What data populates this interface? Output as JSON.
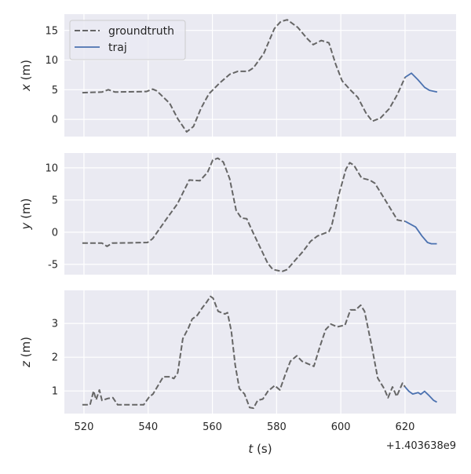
{
  "chart_data": [
    {
      "type": "line",
      "ylabel_var": "x",
      "ylabel_unit": " (m)",
      "xlim": [
        513.9,
        635.9
      ],
      "ylim": [
        -2.9,
        17.75
      ],
      "yticks": [
        0,
        5,
        10,
        15
      ],
      "grid": true,
      "legend": {
        "placement": "top-left",
        "entries": [
          "groundtruth",
          "traj"
        ]
      },
      "series": [
        {
          "name": "groundtruth",
          "style": "dashed",
          "color": "#666666",
          "x": [
            519.5,
            525.6,
            527.6,
            529.7,
            539.5,
            541.4,
            542.7,
            546.7,
            549.2,
            552.0,
            554.1,
            556.5,
            558.9,
            562.2,
            565.4,
            567.9,
            571.1,
            572.8,
            576.0,
            579.3,
            581.3,
            583.3,
            586.6,
            589.4,
            591.4,
            593.9,
            596.3,
            598.4,
            600.4,
            602.9,
            605.3,
            607.8,
            609.8,
            612.3,
            615.1,
            617.6,
            620.0
          ],
          "y": [
            4.5,
            4.6,
            5.0,
            4.6,
            4.7,
            5.1,
            4.8,
            2.7,
            0.1,
            -2.1,
            -1.2,
            1.9,
            4.3,
            6.1,
            7.6,
            8.1,
            8.1,
            8.7,
            11.1,
            15.3,
            16.5,
            16.8,
            15.5,
            13.7,
            12.6,
            13.3,
            12.9,
            9.3,
            6.5,
            5.0,
            3.7,
            1.1,
            -0.3,
            0.2,
            1.8,
            4.2,
            7.1
          ]
        },
        {
          "name": "traj",
          "style": "solid",
          "color": "#4c72b0",
          "x": [
            620.0,
            622.0,
            624.0,
            626.1,
            627.6,
            629.3,
            630.0
          ],
          "y": [
            7.1,
            7.8,
            6.7,
            5.4,
            4.9,
            4.7,
            4.6
          ]
        }
      ]
    },
    {
      "type": "line",
      "ylabel_var": "y",
      "ylabel_unit": " (m)",
      "xlim": [
        513.9,
        635.9
      ],
      "ylim": [
        -6.6,
        12.3
      ],
      "yticks": [
        -5,
        0,
        5,
        10
      ],
      "grid": true,
      "series": [
        {
          "name": "groundtruth",
          "style": "dashed",
          "color": "#666666",
          "x": [
            519.5,
            525.6,
            527.2,
            528.8,
            539.8,
            541.4,
            545.9,
            549.1,
            552.8,
            556.1,
            558.5,
            560.1,
            561.7,
            563.4,
            565.4,
            567.4,
            569.0,
            570.7,
            572.7,
            575.2,
            577.2,
            578.8,
            581.7,
            583.3,
            585.7,
            588.2,
            590.6,
            592.7,
            596.3,
            597.1,
            599.6,
            601.6,
            602.8,
            604.1,
            606.5,
            609.0,
            610.6,
            614.3,
            617.6,
            619.6,
            620.0
          ],
          "y": [
            -1.7,
            -1.7,
            -2.2,
            -1.7,
            -1.6,
            -1.0,
            2.2,
            4.4,
            8.1,
            8.0,
            9.3,
            11.2,
            11.5,
            10.9,
            8.3,
            3.4,
            2.2,
            2.1,
            -0.1,
            -2.7,
            -4.8,
            -5.8,
            -6.1,
            -5.8,
            -4.4,
            -3.0,
            -1.4,
            -0.6,
            0.1,
            0.9,
            6.2,
            9.8,
            10.8,
            10.4,
            8.4,
            8.1,
            7.6,
            4.6,
            1.9,
            1.7,
            1.7
          ]
        },
        {
          "name": "traj",
          "style": "solid",
          "color": "#4c72b0",
          "x": [
            620.0,
            623.3,
            625.3,
            627.0,
            628.2,
            629.9
          ],
          "y": [
            1.7,
            0.8,
            -0.6,
            -1.6,
            -1.8,
            -1.8
          ]
        }
      ]
    },
    {
      "type": "line",
      "ylabel_var": "z",
      "ylabel_unit": " (m)",
      "xlim": [
        513.9,
        635.9
      ],
      "ylim": [
        0.33,
        3.98
      ],
      "yticks": [
        1,
        2,
        3
      ],
      "xticks": [
        520,
        540,
        560,
        580,
        600,
        620
      ],
      "xlabel_var": "t",
      "xlabel_unit": " (s)",
      "offset_text": "+1.403638e9",
      "grid": true,
      "series": [
        {
          "name": "groundtruth",
          "style": "dashed",
          "color": "#666666",
          "x": [
            519.5,
            521.9,
            523.0,
            523.8,
            524.8,
            525.6,
            527.6,
            529.0,
            530.5,
            538.6,
            540.3,
            541.5,
            543.5,
            544.7,
            546.8,
            548.0,
            549.2,
            550.8,
            552.5,
            553.7,
            555.3,
            556.9,
            558.2,
            559.4,
            560.2,
            561.8,
            563.9,
            564.7,
            565.9,
            567.1,
            568.4,
            570.0,
            571.6,
            572.8,
            574.1,
            575.7,
            577.3,
            579.4,
            581.0,
            582.6,
            584.3,
            586.3,
            587.9,
            589.6,
            591.6,
            593.6,
            595.3,
            596.9,
            598.9,
            601.3,
            603.0,
            604.6,
            606.2,
            607.4,
            609.5,
            611.5,
            613.5,
            614.7,
            616.1,
            617.4,
            619.2,
            620.0
          ],
          "y": [
            0.59,
            0.59,
            1.0,
            0.74,
            1.03,
            0.72,
            0.78,
            0.8,
            0.59,
            0.59,
            0.82,
            0.91,
            1.23,
            1.42,
            1.42,
            1.37,
            1.54,
            2.55,
            2.86,
            3.13,
            3.24,
            3.47,
            3.63,
            3.8,
            3.75,
            3.36,
            3.28,
            3.32,
            2.77,
            1.77,
            1.07,
            0.91,
            0.51,
            0.49,
            0.72,
            0.76,
            0.99,
            1.16,
            1.03,
            1.46,
            1.88,
            2.04,
            1.88,
            1.81,
            1.73,
            2.35,
            2.82,
            2.98,
            2.9,
            2.95,
            3.4,
            3.4,
            3.54,
            3.36,
            2.39,
            1.38,
            1.07,
            0.8,
            1.12,
            0.84,
            1.23,
            1.12
          ]
        },
        {
          "name": "traj",
          "style": "solid",
          "color": "#4c72b0",
          "x": [
            620.0,
            621.2,
            622.4,
            624.1,
            624.9,
            626.1,
            627.3,
            628.9,
            629.9
          ],
          "y": [
            1.12,
            0.99,
            0.91,
            0.95,
            0.9,
            0.99,
            0.88,
            0.72,
            0.67
          ]
        }
      ]
    }
  ],
  "colors": {
    "background": "#eaeaf2",
    "grid": "#ffffff",
    "groundtruth": "#666666",
    "traj": "#4c72b0"
  }
}
